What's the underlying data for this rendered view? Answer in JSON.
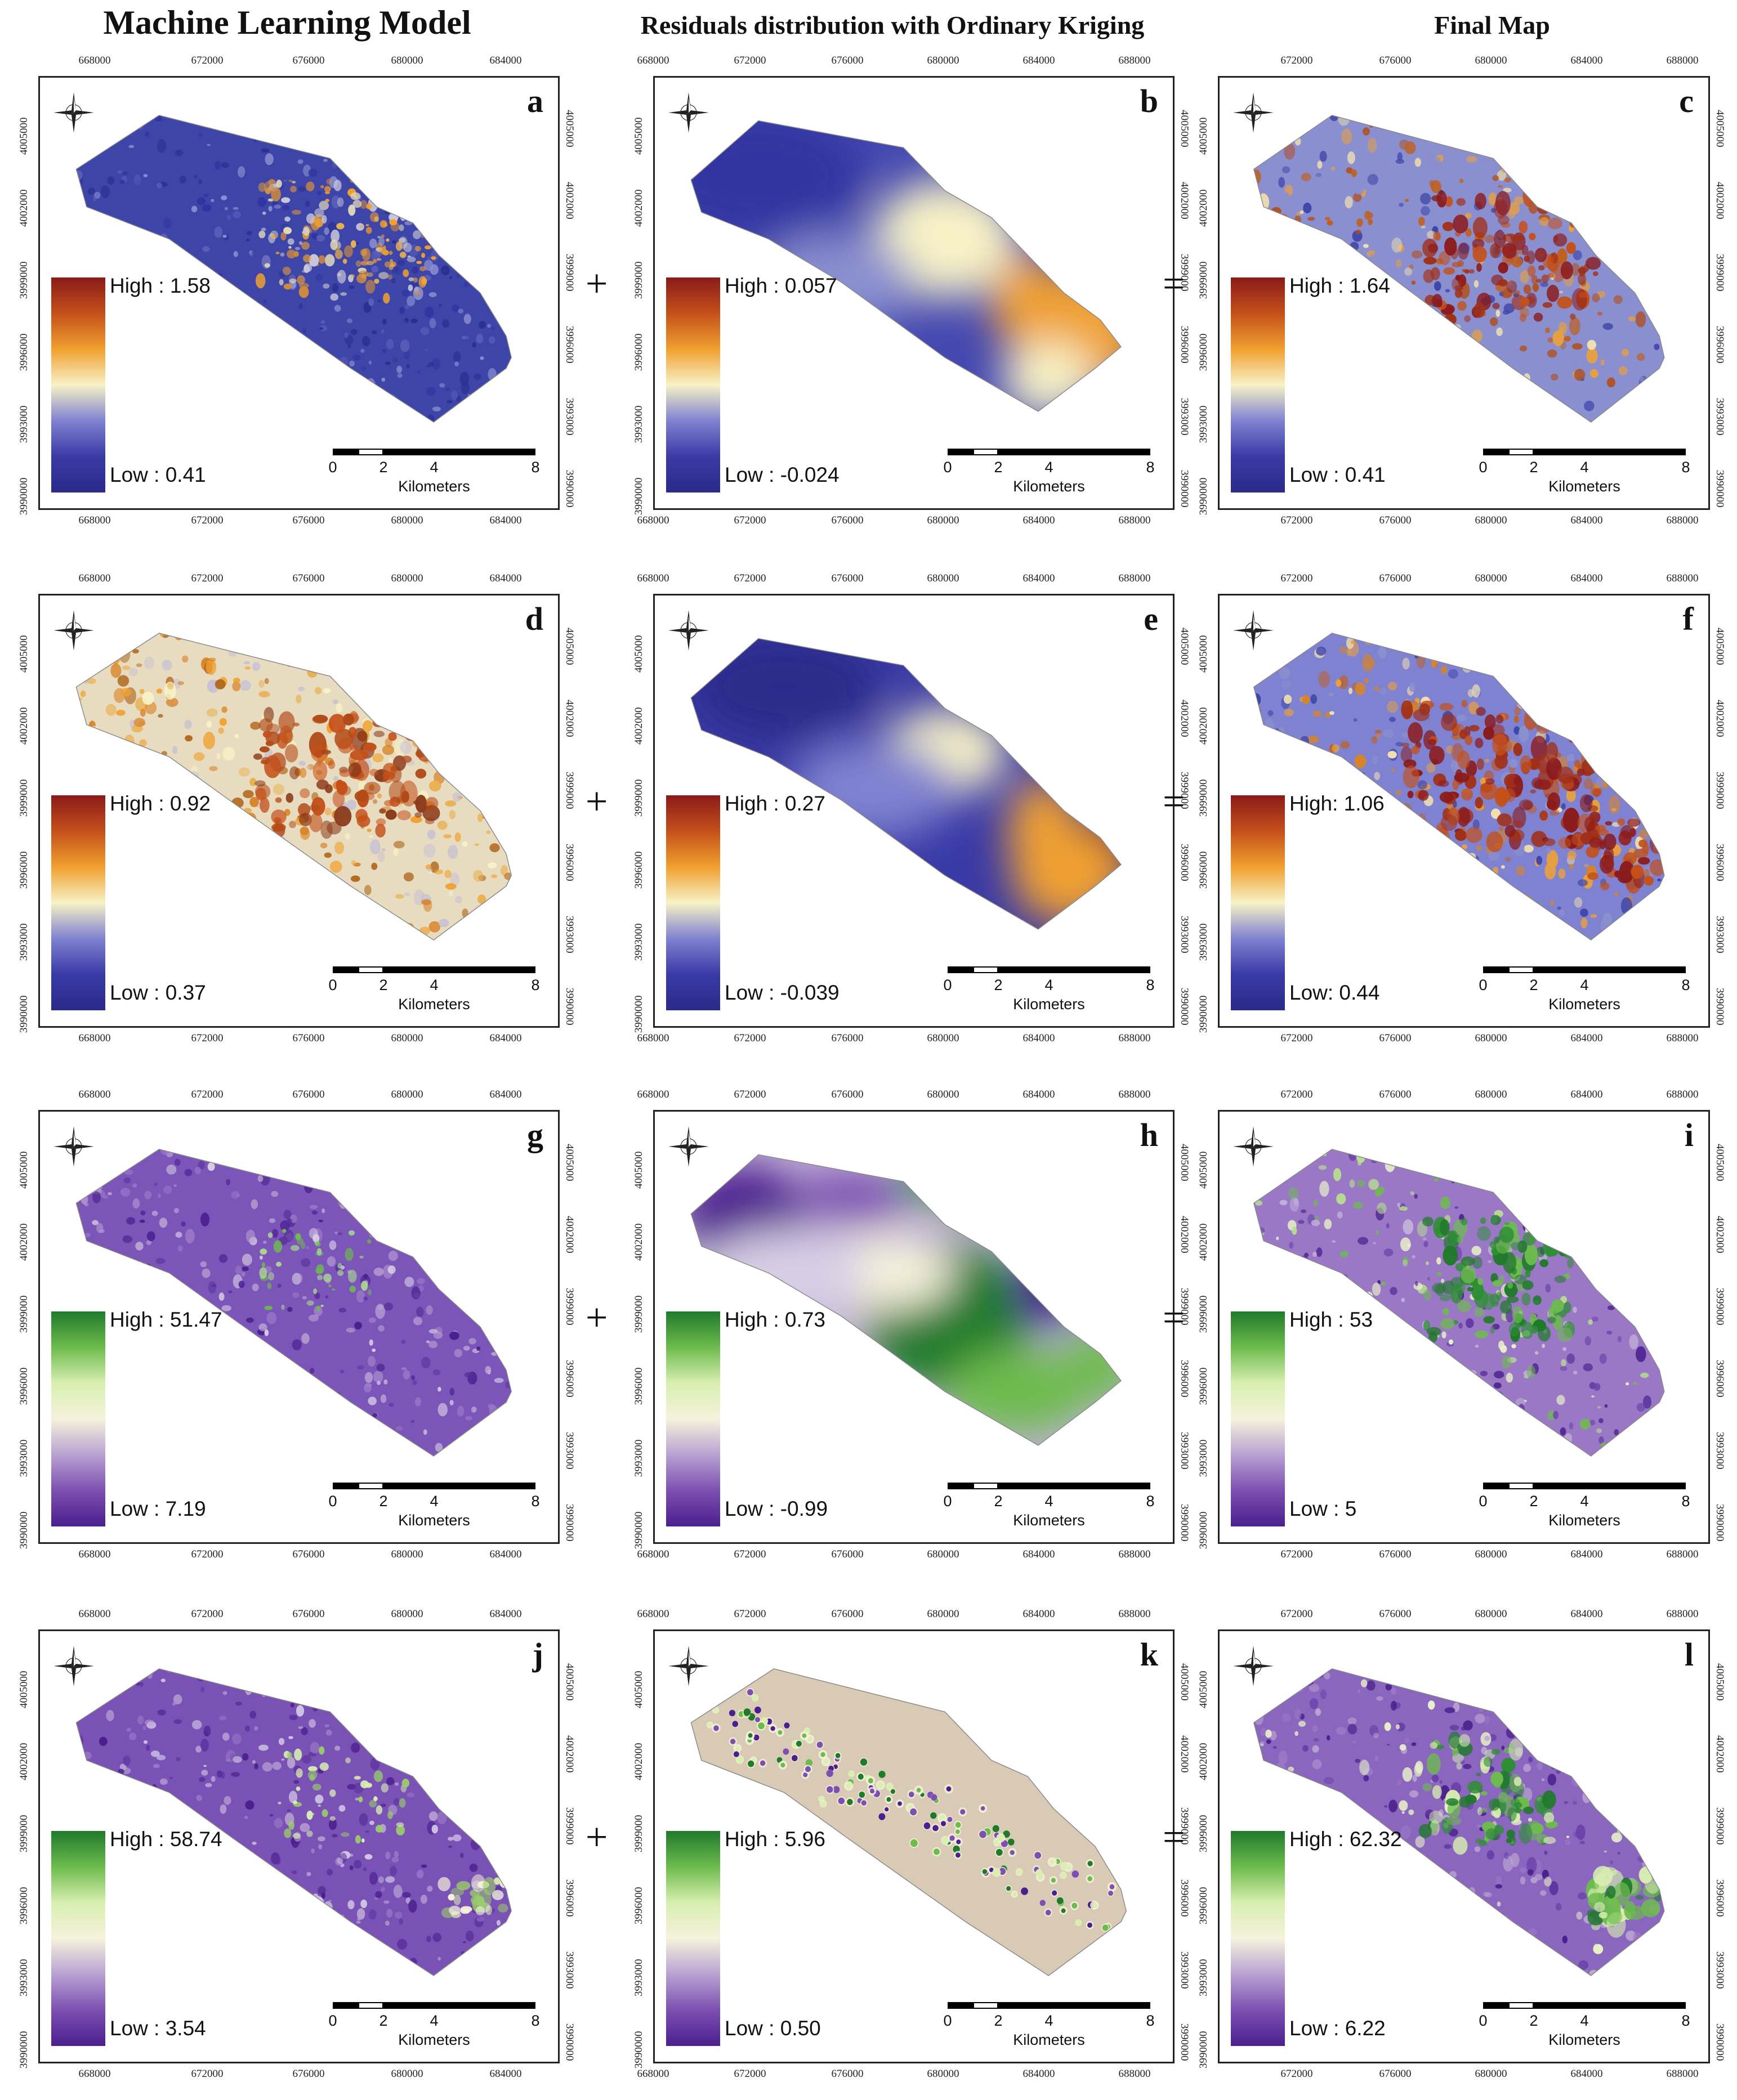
{
  "column_titles": [
    "Machine Learning Model",
    "Residuals distribution with Ordinary Kriging",
    "Final Map"
  ],
  "operators": [
    "+",
    "="
  ],
  "scale_bar": {
    "numbers": [
      "0",
      "2",
      "4",
      "8"
    ],
    "unit": "Kilometers"
  },
  "axis_ticks": {
    "x_a": [
      "668000",
      "672000",
      "676000",
      "680000",
      "684000"
    ],
    "x_b": [
      "668000",
      "672000",
      "676000",
      "680000",
      "684000",
      "688000"
    ],
    "x_c": [
      "672000",
      "676000",
      "680000",
      "684000",
      "688000"
    ],
    "y": [
      "4005000",
      "4002000",
      "3999000",
      "3996000",
      "3993000",
      "3990000"
    ]
  },
  "panels": [
    {
      "letter": "a",
      "high": "High : 1.58",
      "low": "Low : 0.41",
      "palette": "bor",
      "style": "ml_low"
    },
    {
      "letter": "b",
      "high": "High : 0.057",
      "low": "Low : -0.024",
      "palette": "bor",
      "style": "krig1"
    },
    {
      "letter": "c",
      "high": "High : 1.64",
      "low": "Low : 0.41",
      "palette": "bor",
      "style": "final_bor"
    },
    {
      "letter": "d",
      "high": "High : 0.92",
      "low": "Low : 0.37",
      "palette": "bor",
      "style": "ml_high"
    },
    {
      "letter": "e",
      "high": "High : 0.27",
      "low": "Low : -0.039",
      "palette": "bor",
      "style": "krig2"
    },
    {
      "letter": "f",
      "high": "High: 1.06",
      "low": "Low: 0.44",
      "palette": "bor",
      "style": "final_bor2"
    },
    {
      "letter": "g",
      "high": "High : 51.47",
      "low": "Low : 7.19",
      "palette": "pg",
      "style": "ml_purple"
    },
    {
      "letter": "h",
      "high": "High : 0.73",
      "low": "Low : -0.99",
      "palette": "pg",
      "style": "krig_green"
    },
    {
      "letter": "i",
      "high": "High : 53",
      "low": "Low : 5",
      "palette": "pg",
      "style": "final_pg"
    },
    {
      "letter": "j",
      "high": "High : 58.74",
      "low": "Low : 3.54",
      "palette": "pg",
      "style": "ml_purple2"
    },
    {
      "letter": "k",
      "high": "High : 5.96",
      "low": "Low : 0.50",
      "palette": "pg",
      "style": "points"
    },
    {
      "letter": "l",
      "high": "High : 62.32",
      "low": "Low : 6.22",
      "palette": "pg",
      "style": "final_pg2"
    }
  ],
  "palettes": {
    "bor": [
      "#8b1a1a",
      "#c4501a",
      "#f0a030",
      "#f7f2c6",
      "#7f82d0",
      "#3a3aa6",
      "#2a2a8a"
    ],
    "pg": [
      "#1f7a2a",
      "#6dbb4e",
      "#d8efb0",
      "#f6f2dc",
      "#b8a2d2",
      "#7c4fb0",
      "#4b1f8e"
    ]
  }
}
